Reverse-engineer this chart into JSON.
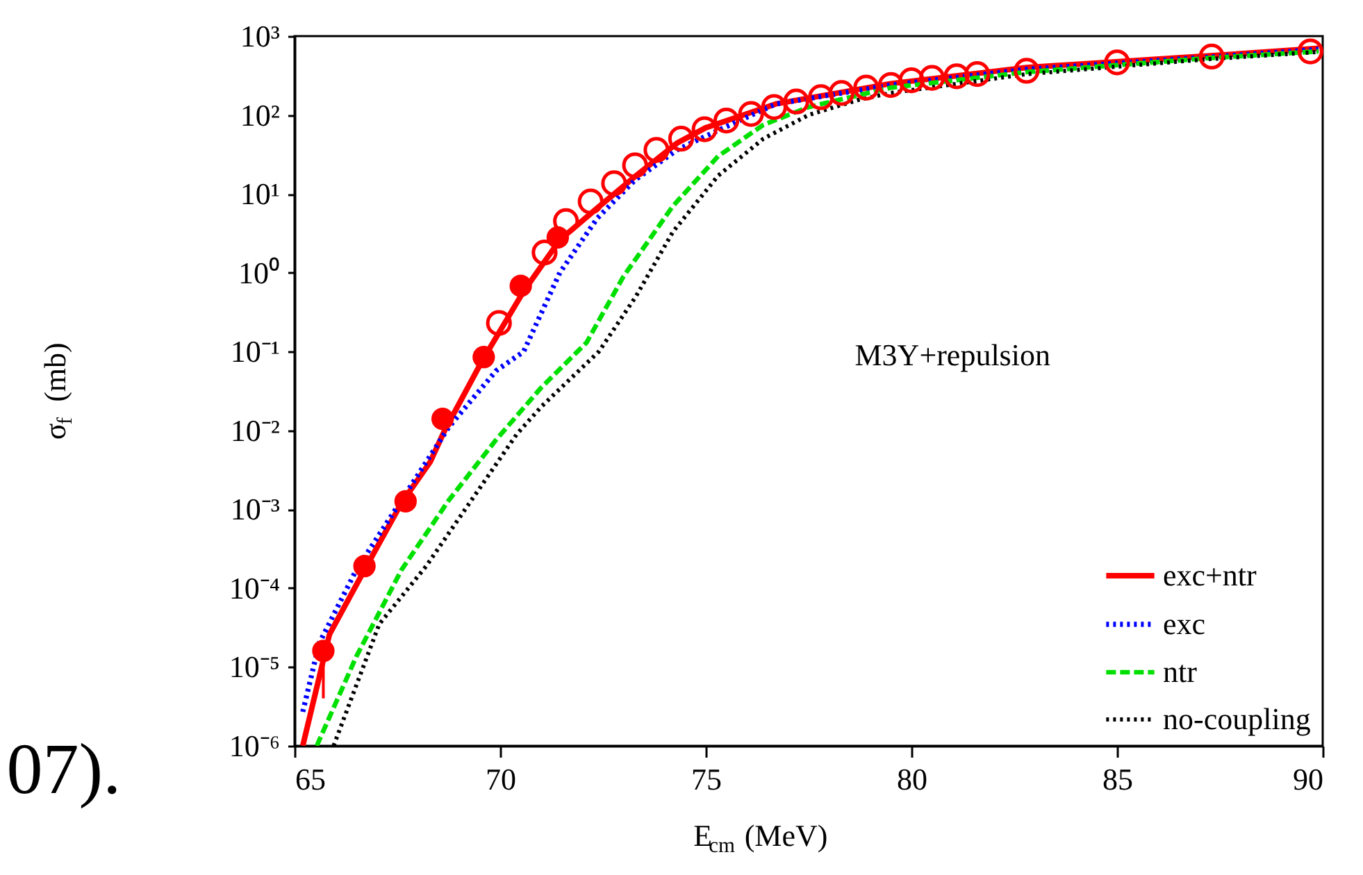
{
  "chart_data": {
    "type": "line",
    "xlabel": "E$_{cm}$ (MeV)",
    "ylabel": "σ$_{f}$ (mb)",
    "annotations": [
      "M3Y+repulsion",
      "07)."
    ],
    "log": true,
    "grid": false,
    "legend": "bottom right",
    "xlim": [
      65,
      90
    ],
    "xticks": [
      65,
      70,
      75,
      80,
      85,
      90
    ],
    "ylim": [
      1e-06,
      1000
    ],
    "yticks": [
      {
        "value": 1e-06,
        "label": "10⁻⁶"
      },
      {
        "value": 1e-05,
        "label": "10⁻⁵"
      },
      {
        "value": 0.0001,
        "label": "10⁻⁴"
      },
      {
        "value": 0.001,
        "label": "10⁻³"
      },
      {
        "value": 0.01,
        "label": "10⁻²"
      },
      {
        "value": 0.1,
        "label": "10⁻¹"
      },
      {
        "value": 1,
        "label": "10⁰"
      },
      {
        "value": 10,
        "label": "10¹"
      },
      {
        "value": 100,
        "label": "10²"
      },
      {
        "value": 1000,
        "label": "10³"
      }
    ],
    "series": [
      {
        "name": "exc+ntr",
        "line_style": "solid",
        "color": "#ff0000",
        "x": [
          65.2,
          65.85,
          66.7,
          67.6,
          68.3,
          68.65,
          69.56,
          70.57,
          71.45,
          72.36,
          73.28,
          74.3,
          75.0,
          76.7,
          79.5,
          82.8,
          87.2,
          89.9
        ],
        "values": [
          1e-06,
          2.6e-05,
          0.00017,
          0.0012,
          0.004,
          0.01,
          0.076,
          0.58,
          2.6,
          6.6,
          16.6,
          44,
          69,
          138,
          250,
          400,
          560,
          700
        ]
      },
      {
        "name": "exc",
        "line_style": "dotted",
        "color": "#0000ff",
        "x": [
          65.2,
          65.6,
          66.5,
          67.6,
          68.75,
          69.9,
          70.57,
          71.45,
          72.36,
          73.28,
          74.3,
          75.0,
          76.7,
          79.5,
          82.8,
          87.2,
          89.9
        ],
        "values": [
          2.7e-06,
          2e-05,
          0.00017,
          0.0013,
          0.011,
          0.057,
          0.1,
          1.0,
          4.9,
          15,
          36,
          54,
          138,
          240,
          380,
          540,
          680
        ]
      },
      {
        "name": "ntr",
        "line_style": "dashed",
        "color": "#00e000",
        "x": [
          65.54,
          66.5,
          67.6,
          68.75,
          69.9,
          71.0,
          72.1,
          73.0,
          74.2,
          75.3,
          76.4,
          77.5,
          79.5,
          82.8,
          87.2,
          89.9
        ],
        "values": [
          1e-06,
          1.35e-05,
          0.00017,
          0.0013,
          0.0076,
          0.035,
          0.13,
          0.9,
          7,
          30,
          75,
          126,
          222,
          350,
          525,
          640
        ]
      },
      {
        "name": "no-coupling",
        "line_style": "dotted",
        "color": "#000000",
        "x": [
          65.95,
          67.06,
          68.2,
          69.3,
          70.4,
          71.0,
          72.4,
          73.3,
          74.2,
          75.3,
          76.4,
          77.5,
          78.7,
          79.5,
          82.8,
          87.2,
          89.9
        ],
        "values": [
          1e-06,
          3.5e-05,
          0.00019,
          0.0013,
          0.0089,
          0.02,
          0.1,
          0.5,
          3.3,
          17,
          50,
          100,
          155,
          190,
          330,
          510,
          630
        ]
      },
      {
        "type": "scatter",
        "marker": "circle",
        "color": "#ff0000",
        "x": [
          65.7,
          66.7,
          67.7,
          68.6,
          69.6,
          70.5,
          71.4
        ],
        "values": [
          1.6e-05,
          0.00019,
          0.00126,
          0.014,
          0.085,
          0.68,
          2.8
        ],
        "errors": [
          [
            4e-06,
            1.6e-05
          ],
          null,
          null,
          null,
          null,
          null,
          null
        ]
      },
      {
        "type": "scatter",
        "marker": "circle",
        "color": "#ff0000",
        "x": [
          69.97,
          71.08,
          71.6,
          72.2,
          72.77,
          73.28,
          73.8,
          74.4,
          74.97,
          75.5,
          76.1,
          76.66,
          77.2,
          77.8,
          78.3,
          78.9,
          79.5,
          80.0,
          80.5,
          81.1,
          81.6,
          82.8,
          85.0,
          87.3,
          89.7
        ],
        "values": [
          0.23,
          1.8,
          4.5,
          8,
          13.6,
          23,
          36,
          50,
          66,
          85,
          103,
          126,
          148,
          168,
          190,
          222,
          240,
          275,
          295,
          310,
          330,
          363,
          465,
          550,
          640
        ]
      }
    ]
  }
}
